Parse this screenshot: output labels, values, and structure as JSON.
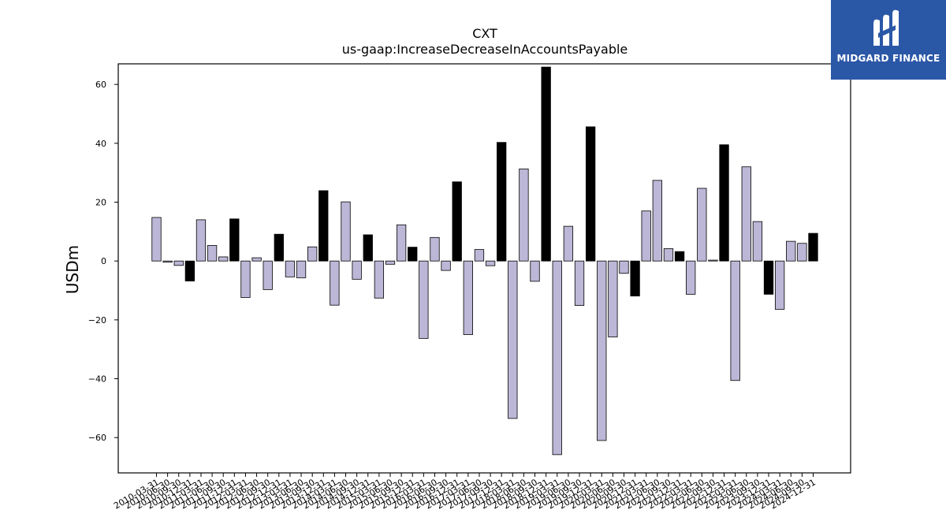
{
  "logo": {
    "name": "MIDGARD FINANCE",
    "icon": "midgard-logo-icon",
    "background": "#2b57a7"
  },
  "colors": {
    "q_fill": "#bcb7d6",
    "q4_fill": "#000000",
    "edge": "#000000"
  },
  "chart_data": {
    "type": "bar",
    "title": "CXT",
    "subtitle": "us-gaap:IncreaseDecreaseInAccountsPayable",
    "xlabel": "",
    "ylabel": "USDm",
    "ylim": [
      -72,
      67
    ],
    "yticks": [
      -60,
      -40,
      -20,
      0,
      20,
      40,
      60
    ],
    "grid": false,
    "legend": "none",
    "categories": [
      "2010-03-31",
      "2010-06-30",
      "2010-09-30",
      "2010-12-31",
      "2011-03-31",
      "2011-06-30",
      "2011-09-30",
      "2011-12-31",
      "2012-03-31",
      "2012-06-30",
      "2012-09-30",
      "2012-12-31",
      "2013-03-31",
      "2013-06-30",
      "2013-09-30",
      "2013-12-31",
      "2014-03-31",
      "2014-06-30",
      "2014-09-30",
      "2014-12-31",
      "2015-03-31",
      "2015-06-30",
      "2015-09-30",
      "2015-12-31",
      "2016-03-31",
      "2016-06-30",
      "2016-09-30",
      "2016-12-31",
      "2017-03-31",
      "2017-06-30",
      "2017-09-30",
      "2017-12-31",
      "2018-03-31",
      "2018-06-30",
      "2018-09-30",
      "2018-12-31",
      "2019-03-31",
      "2019-06-30",
      "2019-09-30",
      "2019-12-31",
      "2020-03-31",
      "2020-06-30",
      "2020-09-30",
      "2020-12-31",
      "2021-03-31",
      "2021-06-30",
      "2021-09-30",
      "2021-12-31",
      "2022-03-31",
      "2022-06-30",
      "2022-09-30",
      "2022-12-31",
      "2023-03-31",
      "2023-06-30",
      "2023-09-30",
      "2023-12-31",
      "2024-03-31",
      "2024-06-30",
      "2024-09-30",
      "2024-12-31"
    ],
    "values": [
      14.8,
      -0.4,
      -1.5,
      -6.8,
      14.0,
      5.3,
      1.4,
      14.3,
      -12.4,
      1.1,
      -9.7,
      9.1,
      -5.4,
      -5.7,
      4.8,
      23.9,
      -15.0,
      20.1,
      -6.2,
      8.9,
      -12.6,
      -1.1,
      12.3,
      4.7,
      -26.3,
      8.0,
      -3.2,
      26.9,
      -25.0,
      3.9,
      -1.6,
      40.3,
      -53.5,
      31.3,
      -6.9,
      65.9,
      -65.8,
      11.8,
      -15.1,
      45.6,
      -61.0,
      -25.8,
      -4.2,
      -11.9,
      17.0,
      27.4,
      4.2,
      3.2,
      -11.3,
      24.7,
      0.3,
      39.5,
      -40.6,
      32.0,
      13.4,
      -11.3,
      -16.4,
      6.7,
      6.0,
      9.4
    ]
  }
}
